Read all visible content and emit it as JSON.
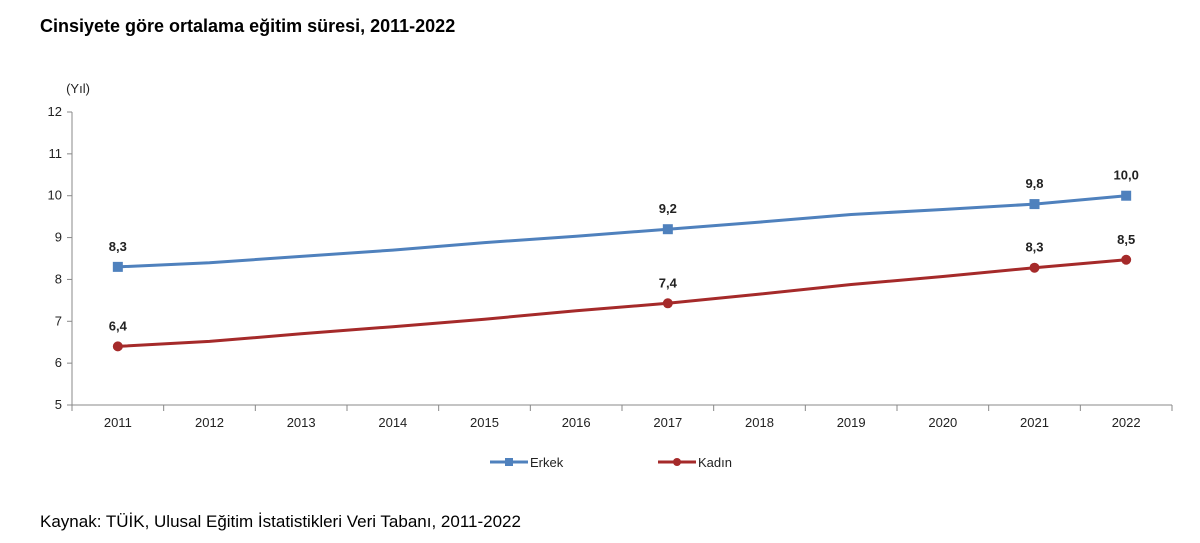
{
  "title": "Cinsiyete göre ortalama eğitim süresi, 2011-2022",
  "source": "Kaynak: TÜİK, Ulusal Eğitim İstatistikleri Veri Tabanı, 2011-2022",
  "chart_data": {
    "type": "line",
    "ylabel": "(Yıl)",
    "ylim": [
      5,
      12
    ],
    "yticks": [
      "5",
      "6",
      "7",
      "8",
      "9",
      "10",
      "11",
      "12"
    ],
    "categories": [
      "2011",
      "2012",
      "2013",
      "2014",
      "2015",
      "2016",
      "2017",
      "2018",
      "2019",
      "2020",
      "2021",
      "2022"
    ],
    "legend_position": "bottom",
    "grid": false,
    "series": [
      {
        "name": "Erkek",
        "color": "#4F81BD",
        "marker": "square",
        "values": [
          8.3,
          8.4,
          8.55,
          8.7,
          8.88,
          9.03,
          9.2,
          9.37,
          9.55,
          9.67,
          9.8,
          10.0
        ],
        "labels": [
          "8,3",
          "",
          "",
          "",
          "",
          "",
          "9,2",
          "",
          "",
          "",
          "9,8",
          "10,0"
        ]
      },
      {
        "name": "Kadın",
        "color": "#A52A2A",
        "marker": "circle",
        "values": [
          6.4,
          6.52,
          6.7,
          6.87,
          7.05,
          7.25,
          7.43,
          7.65,
          7.88,
          8.07,
          8.28,
          8.47
        ],
        "labels": [
          "6,4",
          "",
          "",
          "",
          "",
          "",
          "7,4",
          "",
          "",
          "",
          "8,3",
          "8,5"
        ]
      }
    ]
  }
}
